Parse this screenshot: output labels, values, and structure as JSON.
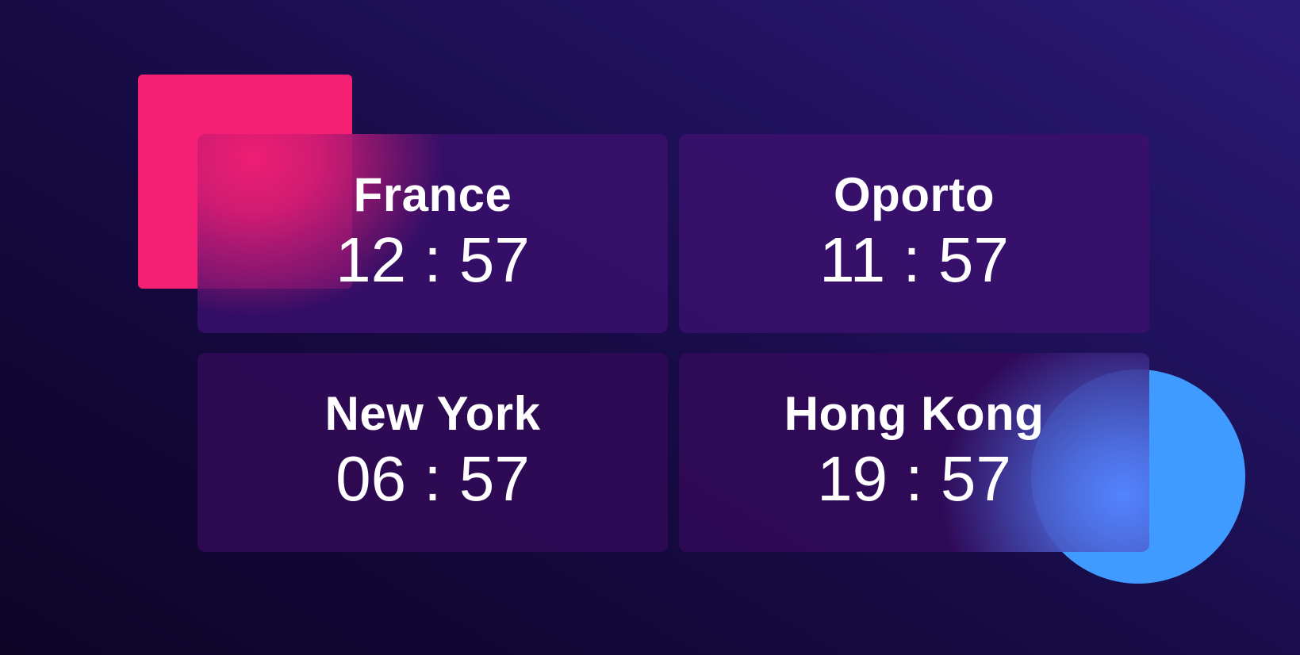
{
  "clocks": [
    {
      "city": "France",
      "time": "12 : 57"
    },
    {
      "city": "Oporto",
      "time": "11 : 57"
    },
    {
      "city": "New York",
      "time": "06 : 57"
    },
    {
      "city": "Hong Kong",
      "time": "19 : 57"
    }
  ],
  "colors": {
    "accent_pink": "#f51f74",
    "accent_blue": "#3f9bff",
    "background_dark": "#0d0426",
    "background_light": "#2a1a78",
    "text": "#ffffff"
  }
}
